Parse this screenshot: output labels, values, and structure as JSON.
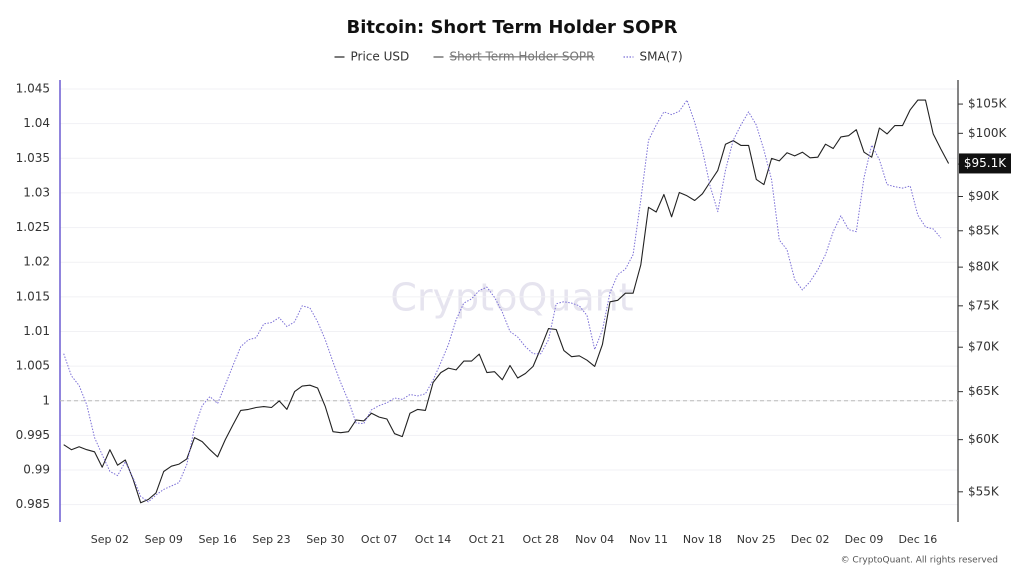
{
  "chart_data": {
    "type": "line",
    "title": "Bitcoin: Short Term Holder SOPR",
    "watermark": "CryptoQuant",
    "footer": "© CryptoQuant. All rights reserved",
    "categories": [
      null,
      null,
      null,
      null,
      null,
      null,
      "Sep 02",
      null,
      null,
      null,
      null,
      null,
      null,
      "Sep 09",
      null,
      null,
      null,
      null,
      null,
      null,
      "Sep 16",
      null,
      null,
      null,
      null,
      null,
      null,
      "Sep 23",
      null,
      null,
      null,
      null,
      null,
      null,
      "Sep 30",
      null,
      null,
      null,
      null,
      null,
      null,
      "Oct 07",
      null,
      null,
      null,
      null,
      null,
      null,
      "Oct 14",
      null,
      null,
      null,
      null,
      null,
      null,
      "Oct 21",
      null,
      null,
      null,
      null,
      null,
      null,
      "Oct 28",
      null,
      null,
      null,
      null,
      null,
      null,
      "Nov 04",
      null,
      null,
      null,
      null,
      null,
      null,
      "Nov 11",
      null,
      null,
      null,
      null,
      null,
      null,
      "Nov 18",
      null,
      null,
      null,
      null,
      null,
      null,
      "Nov 25",
      null,
      null,
      null,
      null,
      null,
      null,
      "Dec 02",
      null,
      null,
      null,
      null,
      null,
      null,
      "Dec 09",
      null,
      null,
      null,
      null,
      null,
      null,
      "Dec 16",
      null,
      null,
      null,
      null
    ],
    "ylim": [
      0.9825,
      1.0463
    ],
    "yticks": [
      0.985,
      0.99,
      0.995,
      1,
      1.005,
      1.01,
      1.015,
      1.02,
      1.025,
      1.03,
      1.035,
      1.04,
      1.045
    ],
    "y2lim": [
      52300,
      109300
    ],
    "y2scale": "log",
    "y2ticks": [
      {
        "value": 55000,
        "label": "$55K"
      },
      {
        "value": 60000,
        "label": "$60K"
      },
      {
        "value": 65000,
        "label": "$65K"
      },
      {
        "value": 70000,
        "label": "$70K"
      },
      {
        "value": 75000,
        "label": "$75K"
      },
      {
        "value": 80000,
        "label": "$80K"
      },
      {
        "value": 85000,
        "label": "$85K"
      },
      {
        "value": 90000,
        "label": "$90K"
      },
      {
        "value": 95000,
        "label": "$95K"
      },
      {
        "value": 100000,
        "label": "$100K"
      },
      {
        "value": 105000,
        "label": "$105K"
      }
    ],
    "reference_line": 1,
    "last_value_label": {
      "value": 95100,
      "label": "$95.1K"
    },
    "grid": true,
    "legend": "top",
    "series": [
      {
        "name": "Price USD",
        "color": "#222222",
        "axis": "y2",
        "style": "solid",
        "values": [
          59500,
          59000,
          59300,
          59000,
          58800,
          57300,
          59000,
          57500,
          58000,
          56200,
          54000,
          54300,
          54900,
          56900,
          57400,
          57600,
          58100,
          60200,
          59800,
          59000,
          58300,
          60000,
          61500,
          63000,
          63100,
          63300,
          63400,
          63300,
          64000,
          63100,
          65000,
          65600,
          65700,
          65400,
          63400,
          60800,
          60700,
          60800,
          62000,
          61900,
          62700,
          62300,
          62100,
          60600,
          60300,
          62700,
          63100,
          63000,
          66000,
          67100,
          67600,
          67400,
          68400,
          68400,
          69200,
          67100,
          67200,
          66300,
          67900,
          66500,
          67000,
          67800,
          69900,
          72200,
          72100,
          69600,
          68900,
          69000,
          68500,
          67800,
          70300,
          75500,
          75700,
          76600,
          76600,
          80300,
          88400,
          87700,
          90300,
          87000,
          90600,
          90100,
          89400,
          90400,
          92200,
          94000,
          98200,
          98800,
          98000,
          98000,
          92600,
          91800,
          95900,
          95500,
          96800,
          96300,
          96900,
          96000,
          96100,
          98200,
          97500,
          99400,
          99600,
          100600,
          96900,
          96100,
          100900,
          99900,
          101300,
          101300,
          104000,
          105700,
          105700,
          99900,
          97400,
          95100
        ]
      },
      {
        "name": "Short Term Holder SOPR",
        "color": "#555555",
        "hidden": true
      },
      {
        "name": "SMA(7)",
        "color": "#7b6fd6",
        "axis": "y",
        "style": "dotted",
        "values": [
          1.0068,
          1.0036,
          1.0022,
          0.9994,
          0.9947,
          0.9922,
          0.9898,
          0.9892,
          0.9912,
          0.9889,
          0.9862,
          0.9854,
          0.9864,
          0.9872,
          0.9877,
          0.9882,
          0.9908,
          0.9961,
          0.9993,
          1.0006,
          0.9996,
          1.0023,
          1.0051,
          1.0078,
          1.0088,
          1.0091,
          1.0111,
          1.0113,
          1.012,
          1.0107,
          1.0114,
          1.0137,
          1.0134,
          1.0114,
          1.0088,
          1.0056,
          1.0026,
          1.0,
          0.9968,
          0.9967,
          0.9987,
          0.9993,
          0.9997,
          1.0004,
          1.0002,
          1.0009,
          1.0007,
          1.001,
          1.003,
          1.0055,
          1.0081,
          1.0117,
          1.0141,
          1.0147,
          1.0159,
          1.0164,
          1.0149,
          1.0128,
          1.01,
          1.0092,
          1.0078,
          1.0068,
          1.0068,
          1.0088,
          1.014,
          1.0143,
          1.0141,
          1.0137,
          1.0123,
          1.0074,
          1.0102,
          1.0156,
          1.0182,
          1.019,
          1.0211,
          1.029,
          1.0376,
          1.0398,
          1.0417,
          1.0413,
          1.0418,
          1.0434,
          1.0402,
          1.0362,
          1.031,
          1.0273,
          1.0333,
          1.0376,
          1.0398,
          1.0417,
          1.0398,
          1.0362,
          1.0319,
          1.0232,
          1.0218,
          1.0175,
          1.016,
          1.0172,
          1.0189,
          1.0211,
          1.0244,
          1.0267,
          1.0247,
          1.0244,
          1.0322,
          1.0369,
          1.0348,
          1.0312,
          1.0309,
          1.0307,
          1.031,
          1.0268,
          1.0251,
          1.0248,
          1.0235,
          null
        ]
      }
    ]
  }
}
